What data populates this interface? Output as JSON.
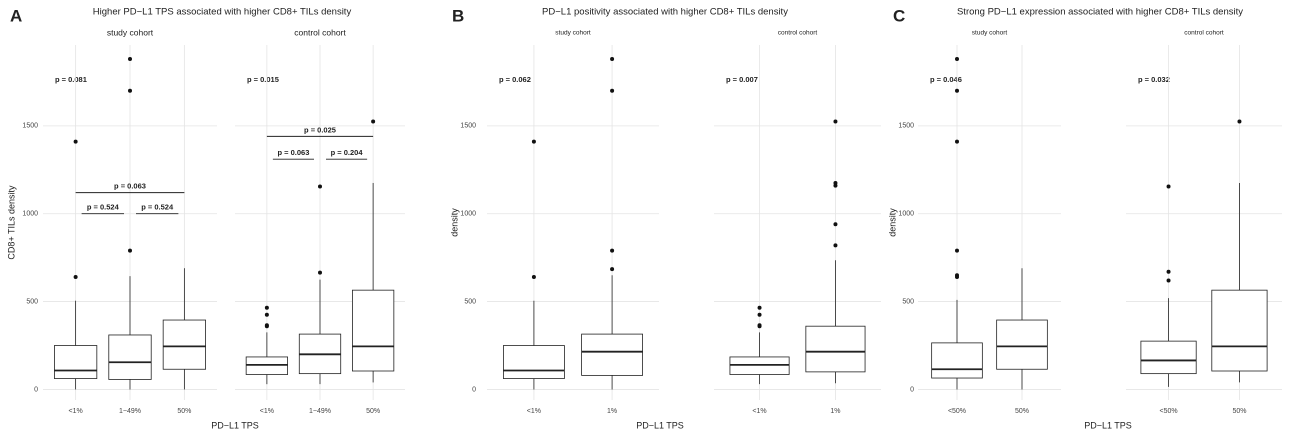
{
  "chart_data": [
    {
      "type": "box",
      "panel": "A",
      "title": "Higher PD−L1 TPS associated with higher CD8+ TILs density",
      "ylabel": "CD8+ TILs density",
      "xlabel": "PD−L1 TPS",
      "ylim": [
        -60,
        1960
      ],
      "yticks": [
        0,
        500,
        1000,
        1500
      ],
      "grid": true,
      "facets": [
        {
          "name": "study cohort",
          "p_label": "p = 0.081",
          "categories": [
            "<1%",
            "1−49%",
            "50%"
          ],
          "boxes": [
            {
              "min": 0,
              "q1": 62,
              "median": 108,
              "q3": 250,
              "max": 505,
              "outliers": [
                640,
                1410
              ]
            },
            {
              "min": 0,
              "q1": 57,
              "median": 155,
              "q3": 310,
              "max": 645,
              "outliers": [
                790,
                1700,
                1880
              ]
            },
            {
              "min": 0,
              "q1": 115,
              "median": 245,
              "q3": 395,
              "max": 690,
              "outliers": []
            }
          ],
          "brackets": [
            "p = 0.524",
            "p = 0.524",
            "p = 0.063"
          ]
        },
        {
          "name": "control cohort",
          "p_label": "p = 0.015",
          "categories": [
            "<1%",
            "1−49%",
            "50%"
          ],
          "boxes": [
            {
              "min": 30,
              "q1": 85,
              "median": 140,
              "q3": 185,
              "max": 325,
              "outliers": [
                360,
                365,
                425,
                465
              ]
            },
            {
              "min": 30,
              "q1": 90,
              "median": 200,
              "q3": 315,
              "max": 625,
              "outliers": [
                665,
                1155
              ]
            },
            {
              "min": 40,
              "q1": 105,
              "median": 245,
              "q3": 565,
              "max": 1175,
              "outliers": [
                1525
              ]
            }
          ],
          "brackets": [
            "p = 0.063",
            "p = 0.204",
            "p = 0.025"
          ]
        }
      ]
    },
    {
      "type": "box",
      "panel": "B",
      "title": "PD−L1 positivity associated with higher CD8+ TILs density",
      "ylabel": "density",
      "xlabel": "PD−L1 TPS",
      "ylim": [
        -60,
        1960
      ],
      "yticks": [
        0,
        500,
        1000,
        1500
      ],
      "grid": true,
      "facets": [
        {
          "name": "study cohort",
          "p_label": "p = 0.062",
          "categories": [
            "<1%",
            "1%"
          ],
          "boxes": [
            {
              "min": 0,
              "q1": 62,
              "median": 108,
              "q3": 250,
              "max": 505,
              "outliers": [
                640,
                1410
              ]
            },
            {
              "min": 0,
              "q1": 80,
              "median": 215,
              "q3": 315,
              "max": 650,
              "outliers": [
                685,
                790,
                1700,
                1880
              ]
            }
          ]
        },
        {
          "name": "control cohort",
          "p_label": "p = 0.007",
          "categories": [
            "<1%",
            "1%"
          ],
          "boxes": [
            {
              "min": 30,
              "q1": 85,
              "median": 140,
              "q3": 185,
              "max": 325,
              "outliers": [
                360,
                365,
                425,
                465
              ]
            },
            {
              "min": 35,
              "q1": 100,
              "median": 215,
              "q3": 360,
              "max": 735,
              "outliers": [
                820,
                940,
                1160,
                1175,
                1525
              ]
            }
          ]
        }
      ]
    },
    {
      "type": "box",
      "panel": "C",
      "title": "Strong PD−L1 expression associated with higher CD8+ TILs density",
      "ylabel": "density",
      "xlabel": "PD−L1 TPS",
      "ylim": [
        -60,
        1960
      ],
      "yticks": [
        0,
        500,
        1000,
        1500
      ],
      "grid": true,
      "facets": [
        {
          "name": "study cohort",
          "p_label": "p = 0.046",
          "categories": [
            "<50%",
            "50%"
          ],
          "boxes": [
            {
              "min": 0,
              "q1": 65,
              "median": 115,
              "q3": 265,
              "max": 510,
              "outliers": [
                640,
                650,
                790,
                1410,
                1700,
                1880
              ]
            },
            {
              "min": 0,
              "q1": 115,
              "median": 245,
              "q3": 395,
              "max": 690,
              "outliers": []
            }
          ]
        },
        {
          "name": "control cohort",
          "p_label": "p = 0.032",
          "categories": [
            "<50%",
            "50%"
          ],
          "boxes": [
            {
              "min": 15,
              "q1": 90,
              "median": 165,
              "q3": 275,
              "max": 520,
              "outliers": [
                620,
                670,
                1155
              ]
            },
            {
              "min": 40,
              "q1": 105,
              "median": 245,
              "q3": 565,
              "max": 1175,
              "outliers": [
                1525
              ]
            }
          ]
        }
      ]
    }
  ]
}
